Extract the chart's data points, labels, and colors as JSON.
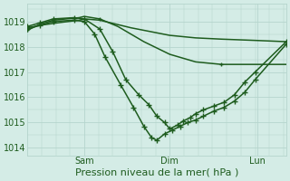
{
  "bg_color": "#d4ece6",
  "grid_color": "#b5d5cd",
  "line_color": "#1e5c1e",
  "xlabel": "Pression niveau de la mer( hPa )",
  "xlabel_fontsize": 8,
  "ylim": [
    1013.7,
    1019.7
  ],
  "yticks": [
    1014,
    1015,
    1016,
    1017,
    1018,
    1019
  ],
  "ytick_fontsize": 7,
  "xtick_labels": [
    "Sam",
    "Dim",
    "Lun"
  ],
  "xtick_positions": [
    0.22,
    0.55,
    0.89
  ],
  "xtick_fontsize": 7,
  "xlim": [
    0.0,
    1.0
  ],
  "lines": {
    "line1_x": [
      0.0,
      0.05,
      0.12,
      0.2,
      0.22,
      0.28,
      0.4,
      0.55,
      0.65,
      0.75,
      0.88,
      1.0
    ],
    "line1_y": [
      1018.75,
      1018.85,
      1018.95,
      1019.05,
      1019.1,
      1019.05,
      1018.75,
      1018.45,
      1018.35,
      1018.3,
      1018.25,
      1018.2
    ],
    "line2_x": [
      0.0,
      0.05,
      0.1,
      0.2,
      0.22,
      0.28,
      0.35,
      0.45,
      0.55,
      0.65,
      0.75,
      0.88,
      1.0
    ],
    "line2_y": [
      1018.65,
      1018.9,
      1019.05,
      1019.15,
      1019.2,
      1019.1,
      1018.8,
      1018.2,
      1017.7,
      1017.4,
      1017.3,
      1017.3,
      1017.3
    ],
    "line3_x": [
      0.0,
      0.05,
      0.1,
      0.18,
      0.22,
      0.28,
      0.33,
      0.38,
      0.43,
      0.47,
      0.5,
      0.53,
      0.55,
      0.58,
      0.6,
      0.63,
      0.65,
      0.68,
      0.72,
      0.76,
      0.8,
      0.84,
      0.88,
      1.0
    ],
    "line3_y": [
      1018.8,
      1018.95,
      1019.1,
      1019.15,
      1019.1,
      1018.7,
      1017.8,
      1016.7,
      1016.1,
      1015.7,
      1015.25,
      1015.0,
      1014.75,
      1014.9,
      1015.05,
      1015.2,
      1015.35,
      1015.5,
      1015.65,
      1015.8,
      1016.1,
      1016.6,
      1017.0,
      1018.2
    ],
    "line4_x": [
      0.0,
      0.05,
      0.1,
      0.18,
      0.22,
      0.26,
      0.3,
      0.36,
      0.41,
      0.45,
      0.48,
      0.5,
      0.53,
      0.56,
      0.59,
      0.62,
      0.65,
      0.68,
      0.72,
      0.76,
      0.8,
      0.84,
      0.88,
      1.0
    ],
    "line4_y": [
      1018.7,
      1018.85,
      1019.0,
      1019.05,
      1019.0,
      1018.5,
      1017.6,
      1016.5,
      1015.6,
      1014.85,
      1014.4,
      1014.3,
      1014.55,
      1014.7,
      1014.85,
      1015.0,
      1015.1,
      1015.25,
      1015.45,
      1015.6,
      1015.85,
      1016.2,
      1016.7,
      1018.1
    ]
  },
  "marker": "+",
  "markersize": 4,
  "linewidth": 1.1
}
